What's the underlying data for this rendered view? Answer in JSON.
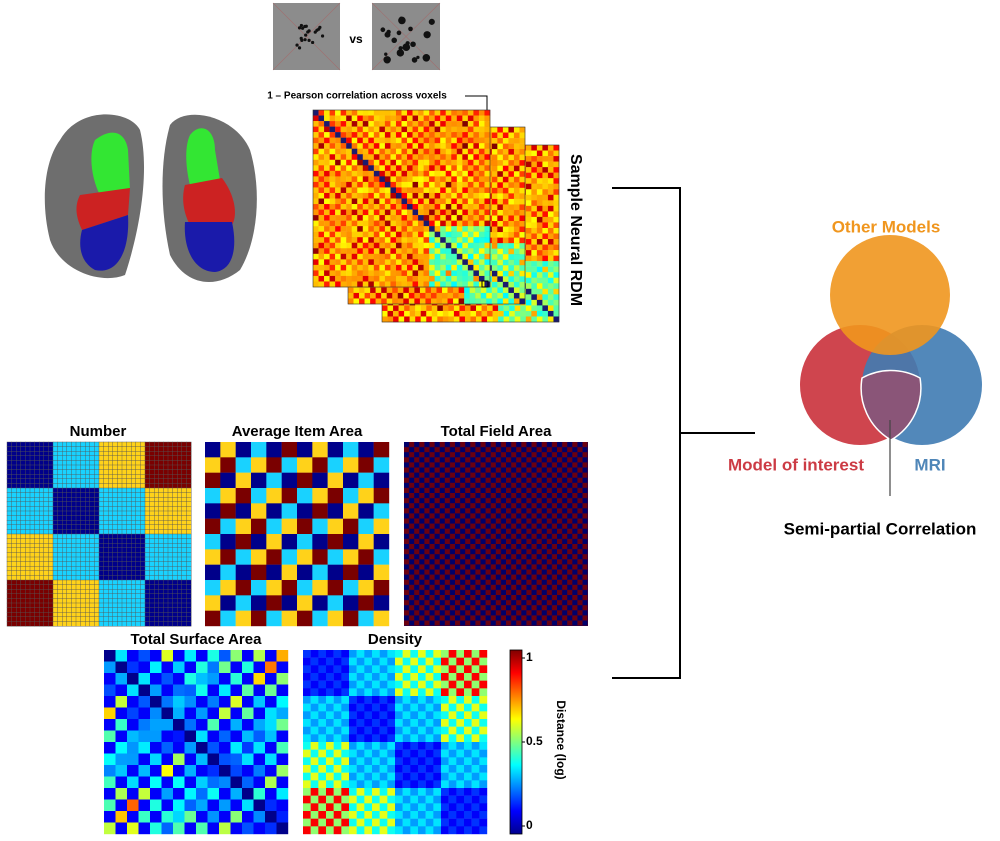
{
  "stimuli": {
    "comparison": "vs"
  },
  "neural_rdm": {
    "caption": "1 – Pearson correlation across voxels",
    "label": "Sample Neural RDM"
  },
  "model_rdms": [
    {
      "title": "Number"
    },
    {
      "title": "Average Item Area"
    },
    {
      "title": "Total Field Area"
    },
    {
      "title": "Total Surface Area"
    },
    {
      "title": "Density"
    }
  ],
  "colorbar": {
    "label": "Distance (log)",
    "ticks": [
      0,
      0.5,
      1
    ]
  },
  "venn": {
    "circles": [
      "Other Models",
      "Model of interest",
      "MRI"
    ],
    "caption": "Semi-partial Correlation"
  }
}
